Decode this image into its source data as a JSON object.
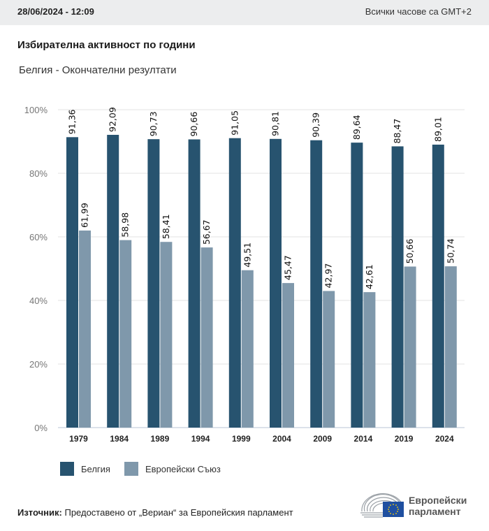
{
  "header": {
    "timestamp": "28/06/2024 - 12:09",
    "timezone_note": "Всички часове са GMT+2"
  },
  "title": "Избирателна активност по години",
  "subtitle": "Белгия - Окончателни резултати",
  "colors": {
    "belgium": "#27536f",
    "eu": "#7f98ab",
    "grid": "#e3e3e3",
    "axis": "#b8c4d6"
  },
  "chart_data": {
    "type": "bar",
    "title": "Избирателна активност по години",
    "subtitle": "Белгия - Окончателни резултати",
    "xlabel": "",
    "ylabel": "",
    "ylim": [
      0,
      100
    ],
    "yticks": [
      "0%",
      "20%",
      "40%",
      "60%",
      "80%",
      "100%"
    ],
    "ytick_values": [
      0,
      20,
      40,
      60,
      80,
      100
    ],
    "grid": true,
    "legend_position": "bottom-left",
    "categories": [
      "1979",
      "1984",
      "1989",
      "1994",
      "1999",
      "2004",
      "2009",
      "2014",
      "2019",
      "2024"
    ],
    "series": [
      {
        "name": "Белгия",
        "color": "#27536f",
        "values": [
          91.36,
          92.09,
          90.73,
          90.66,
          91.05,
          90.81,
          90.39,
          89.64,
          88.47,
          89.01
        ],
        "labels": [
          "91,36",
          "92,09",
          "90,73",
          "90,66",
          "91,05",
          "90,81",
          "90,39",
          "89,64",
          "88,47",
          "89,01"
        ]
      },
      {
        "name": "Европейски Съюз",
        "color": "#7f98ab",
        "values": [
          61.99,
          58.98,
          58.41,
          56.67,
          49.51,
          45.47,
          42.97,
          42.61,
          50.66,
          50.74
        ],
        "labels": [
          "61,99",
          "58,98",
          "58,41",
          "56,67",
          "49,51",
          "45,47",
          "42,97",
          "42,61",
          "50,66",
          "50,74"
        ]
      }
    ]
  },
  "legend": [
    {
      "label": "Белгия",
      "color": "#27536f"
    },
    {
      "label": "Европейски Съюз",
      "color": "#7f98ab"
    }
  ],
  "footer": {
    "source_label": "Източник:",
    "source_text": " Предоставено от „Вериан“ за Европейския парламент",
    "logo_line1": "Европейски",
    "logo_line2": "парламент"
  }
}
